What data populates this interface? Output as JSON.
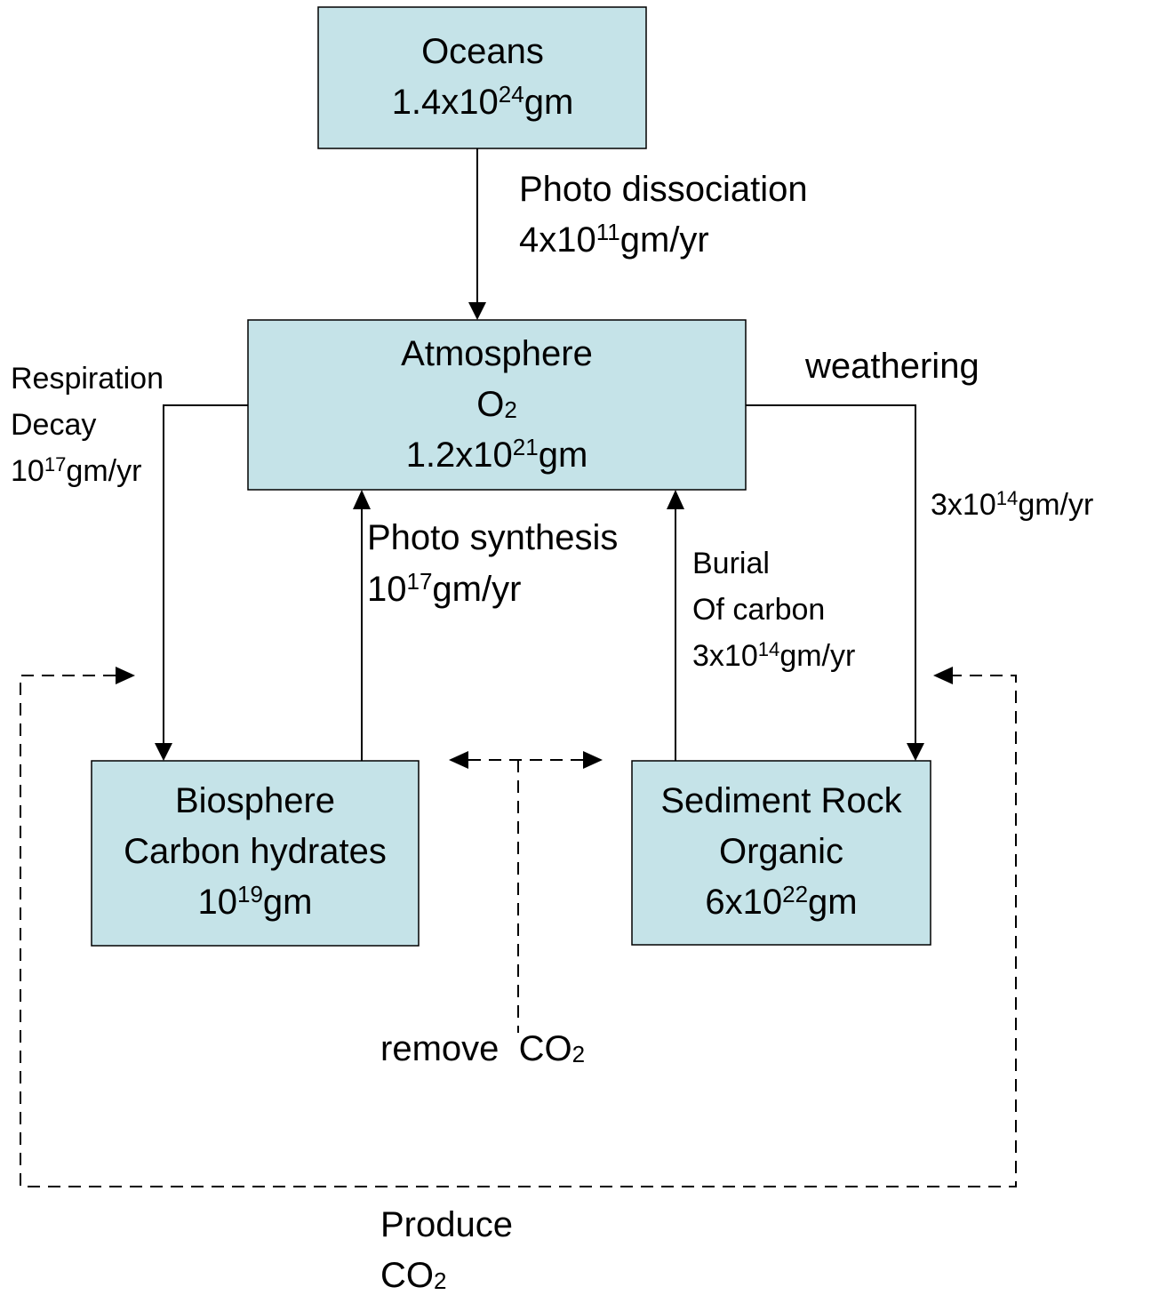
{
  "nodes": [
    {
      "lines": [
        [
          {
            "text": "Oceans"
          }
        ],
        [
          {
            "text": "1.4x10"
          },
          {
            "sup": "24"
          },
          {
            "text": "gm"
          }
        ]
      ]
    },
    {
      "lines": [
        [
          {
            "text": "Atmosphere"
          }
        ],
        [
          {
            "text": "O"
          },
          {
            "sub": "2"
          }
        ],
        [
          {
            "text": "1.2x10"
          },
          {
            "sup": "21"
          },
          {
            "text": "gm"
          }
        ]
      ]
    },
    {
      "lines": [
        [
          {
            "text": "Biosphere"
          }
        ],
        [
          {
            "text": "Carbon hydrates"
          }
        ],
        [
          {
            "text": "10"
          },
          {
            "sup": "19"
          },
          {
            "text": "gm"
          }
        ]
      ]
    },
    {
      "lines": [
        [
          {
            "text": "Sediment Rock"
          }
        ],
        [
          {
            "text": "Organic"
          }
        ],
        [
          {
            "text": "6x10"
          },
          {
            "sup": "22"
          },
          {
            "text": "gm"
          }
        ]
      ]
    }
  ],
  "labels": [
    {
      "lines": [
        [
          {
            "text": "Photo dissociation"
          }
        ],
        [
          {
            "text": "4x10"
          },
          {
            "sup": "11"
          },
          {
            "text": "gm/yr"
          }
        ]
      ]
    },
    {
      "lines": [
        [
          {
            "text": "Respiration"
          }
        ],
        [
          {
            "text": "Decay"
          }
        ],
        [
          {
            "text": "10"
          },
          {
            "sup": "17"
          },
          {
            "text": "gm/yr"
          }
        ]
      ]
    },
    {
      "lines": [
        [
          {
            "text": "weathering"
          }
        ]
      ]
    },
    {
      "lines": [
        [
          {
            "text": "3x10"
          },
          {
            "sup": "14"
          },
          {
            "text": "gm/yr"
          }
        ]
      ]
    },
    {
      "lines": [
        [
          {
            "text": "Photo synthesis"
          }
        ],
        [
          {
            "text": "10"
          },
          {
            "sup": "17"
          },
          {
            "text": "gm/yr"
          }
        ]
      ]
    },
    {
      "lines": [
        [
          {
            "text": "Burial"
          }
        ],
        [
          {
            "text": "Of carbon"
          }
        ],
        [
          {
            "text": "3x10"
          },
          {
            "sup": "14"
          },
          {
            "text": "gm/yr"
          }
        ]
      ]
    },
    {
      "lines": [
        [
          {
            "text": "remove  CO"
          },
          {
            "sub": "2"
          }
        ]
      ]
    },
    {
      "lines": [
        [
          {
            "text": "Produce"
          }
        ],
        [
          {
            "text": "CO"
          },
          {
            "sub": "2"
          }
        ]
      ]
    }
  ]
}
